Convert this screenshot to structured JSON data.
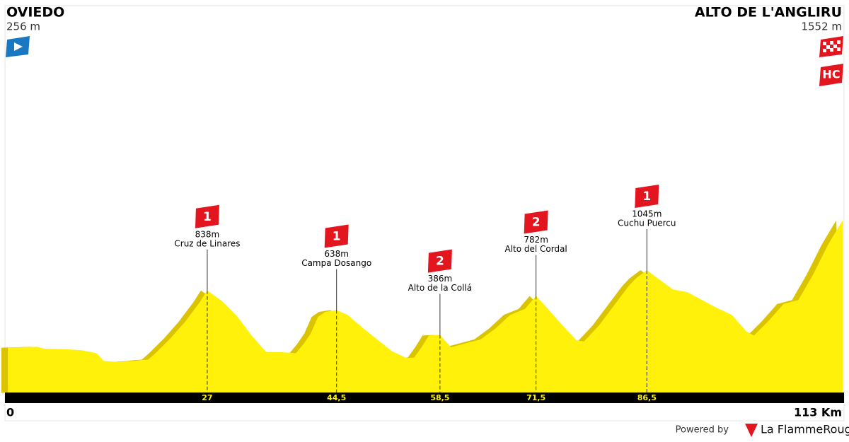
{
  "chart_data": {
    "type": "profile",
    "start": {
      "name": "OVIEDO",
      "elevation_label": "256 m"
    },
    "finish": {
      "name": "ALTO DE L'ANGLIRU",
      "elevation_label": "1552 m",
      "category": "HC"
    },
    "x_start_label": "0",
    "x_end_label": "113 Km",
    "xlim": [
      0,
      113
    ],
    "ylim": [
      -200,
      2700
    ],
    "color": "#fff10a",
    "shade_color": "#dcc300",
    "x": [
      0,
      4,
      5,
      8,
      10,
      12,
      13,
      15,
      17,
      18,
      19,
      20,
      22,
      24,
      25,
      26,
      27,
      29,
      31,
      33,
      35,
      37,
      39,
      40,
      41,
      42,
      43,
      44.5,
      46,
      48,
      50,
      52,
      54,
      55,
      56,
      57,
      58.5,
      60,
      62,
      64,
      66,
      68,
      70,
      71.5,
      73,
      75,
      77,
      78,
      80,
      82,
      84,
      85,
      86.5,
      88,
      90,
      92,
      94,
      96,
      98,
      100,
      101,
      103,
      105,
      107,
      109,
      111,
      113
    ],
    "values": [
      256,
      265,
      245,
      240,
      230,
      200,
      120,
      110,
      120,
      130,
      135,
      200,
      350,
      520,
      620,
      720,
      838,
      730,
      580,
      380,
      210,
      210,
      200,
      290,
      400,
      570,
      620,
      638,
      590,
      460,
      340,
      220,
      150,
      155,
      260,
      380,
      386,
      260,
      300,
      340,
      450,
      590,
      650,
      782,
      660,
      490,
      330,
      320,
      480,
      680,
      880,
      960,
      1045,
      960,
      850,
      820,
      740,
      660,
      590,
      420,
      380,
      530,
      700,
      740,
      1000,
      1300,
      1552
    ],
    "climbs": [
      {
        "km": 27,
        "km_label": "27",
        "elevation": 838,
        "elevation_label": "838m",
        "name": "Cruz de Linares",
        "category": "1"
      },
      {
        "km": 44.5,
        "km_label": "44,5",
        "elevation": 638,
        "elevation_label": "638m",
        "name": "Campa Dosango",
        "category": "1"
      },
      {
        "km": 58.5,
        "km_label": "58,5",
        "elevation": 386,
        "elevation_label": "386m",
        "name": "Alto de la Collá",
        "category": "2"
      },
      {
        "km": 71.5,
        "km_label": "71,5",
        "elevation": 782,
        "elevation_label": "782m",
        "name": "Alto del Cordal",
        "category": "2"
      },
      {
        "km": 86.5,
        "km_label": "86,5",
        "elevation": 1045,
        "elevation_label": "1045m",
        "name": "Cuchu Puercu",
        "category": "1"
      }
    ]
  },
  "footer": {
    "powered": "Powered by",
    "brand": "La FlammeRouge"
  }
}
